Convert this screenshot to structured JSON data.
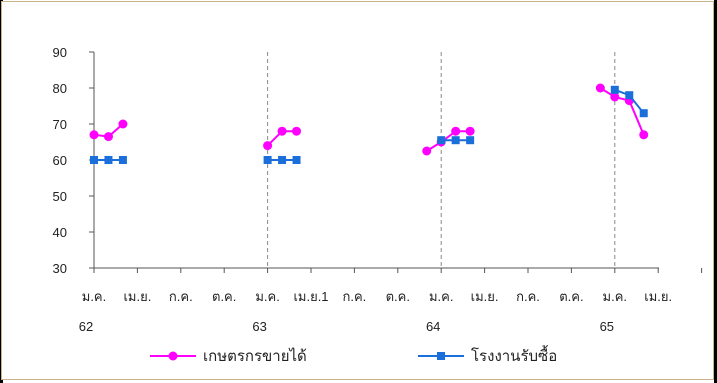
{
  "chart_data": {
    "type": "line",
    "title": "",
    "xlabel": "",
    "ylabel": "",
    "ylim": [
      30,
      90
    ],
    "yticks": [
      30,
      40,
      50,
      60,
      70,
      80,
      90
    ],
    "x_tick_labels": [
      "ม.ค.",
      "เม.ย.",
      "ก.ค.",
      "ต.ค.",
      "ม.ค.",
      "เม.ย.1",
      "ก.ค.",
      "ต.ค.",
      "ม.ค.",
      "เม.ย.",
      "ก.ค.",
      "ต.ค.",
      "ม.ค.",
      "เม.ย."
    ],
    "year_labels": [
      "62",
      "63",
      "64",
      "65"
    ],
    "year_dividers_after_month_index": [
      12,
      24,
      36
    ],
    "grid": false,
    "legend_position": "bottom",
    "series": [
      {
        "name": "เกษตรกรขายได้",
        "color": "#ff00ff",
        "marker": "circle",
        "segments": [
          [
            [
              0,
              67
            ],
            [
              1,
              66.5
            ],
            [
              2,
              70
            ]
          ],
          [
            [
              12,
              64
            ],
            [
              13,
              68
            ],
            [
              14,
              68
            ]
          ],
          [
            [
              23,
              62.5
            ],
            [
              24,
              65
            ],
            [
              25,
              68
            ],
            [
              26,
              68
            ]
          ],
          [
            [
              35,
              80
            ],
            [
              36,
              77.5
            ],
            [
              37,
              76.5
            ],
            [
              38,
              67
            ]
          ]
        ]
      },
      {
        "name": "โรงงานรับซื้อ",
        "color": "#1a6fdb",
        "marker": "square",
        "segments": [
          [
            [
              0,
              60
            ],
            [
              1,
              60
            ],
            [
              2,
              60
            ]
          ],
          [
            [
              12,
              60
            ],
            [
              13,
              60
            ],
            [
              14,
              60
            ]
          ],
          [
            [
              24,
              65.5
            ],
            [
              25,
              65.5
            ],
            [
              26,
              65.5
            ]
          ],
          [
            [
              36,
              79.5
            ],
            [
              37,
              78
            ],
            [
              38,
              73
            ]
          ]
        ]
      }
    ]
  }
}
